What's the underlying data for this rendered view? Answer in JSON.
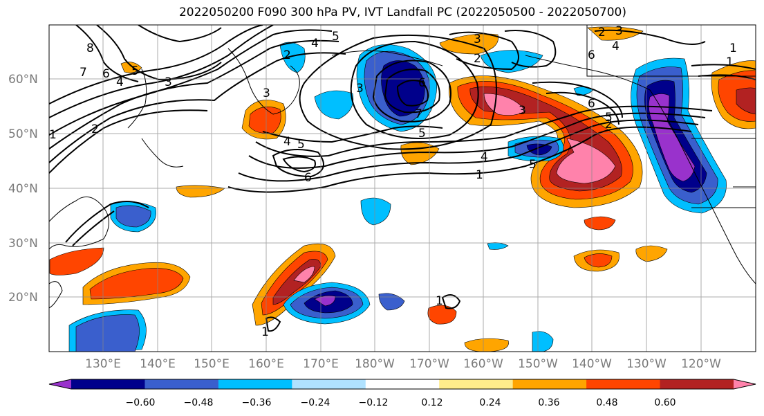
{
  "title": "2022050200 F090 300 hPa PV, IVT Landfall PC (2022050500 - 2022050700)",
  "map": {
    "lon_labels": [
      "130°E",
      "140°E",
      "150°E",
      "160°E",
      "170°E",
      "180°W",
      "170°W",
      "160°W",
      "150°W",
      "140°W",
      "130°W",
      "120°W"
    ],
    "lat_labels": [
      "60°N",
      "50°N",
      "40°N",
      "30°N",
      "20°N"
    ],
    "contour_labels": [
      "8",
      "7",
      "6",
      "5",
      "4",
      "3",
      "2",
      "1",
      "6",
      "5",
      "4",
      "3",
      "2",
      "6",
      "5",
      "4",
      "3",
      "2",
      "1",
      "6",
      "5",
      "4",
      "3",
      "2",
      "1",
      "6",
      "5",
      "4",
      "3",
      "2",
      "1",
      "1",
      "1",
      "3",
      "5",
      "7"
    ]
  },
  "colorbar": {
    "ticks": [
      "−0.60",
      "−0.48",
      "−0.36",
      "−0.24",
      "−0.12",
      "0.12",
      "0.24",
      "0.36",
      "0.48",
      "0.60"
    ],
    "colors": [
      "#9932cc",
      "#00008b",
      "#3a5fcd",
      "#00bfff",
      "#b0e2ff",
      "#ffffff",
      "#ffec8b",
      "#ffa500",
      "#ff4500",
      "#b22222",
      "#ff82ab"
    ]
  }
}
